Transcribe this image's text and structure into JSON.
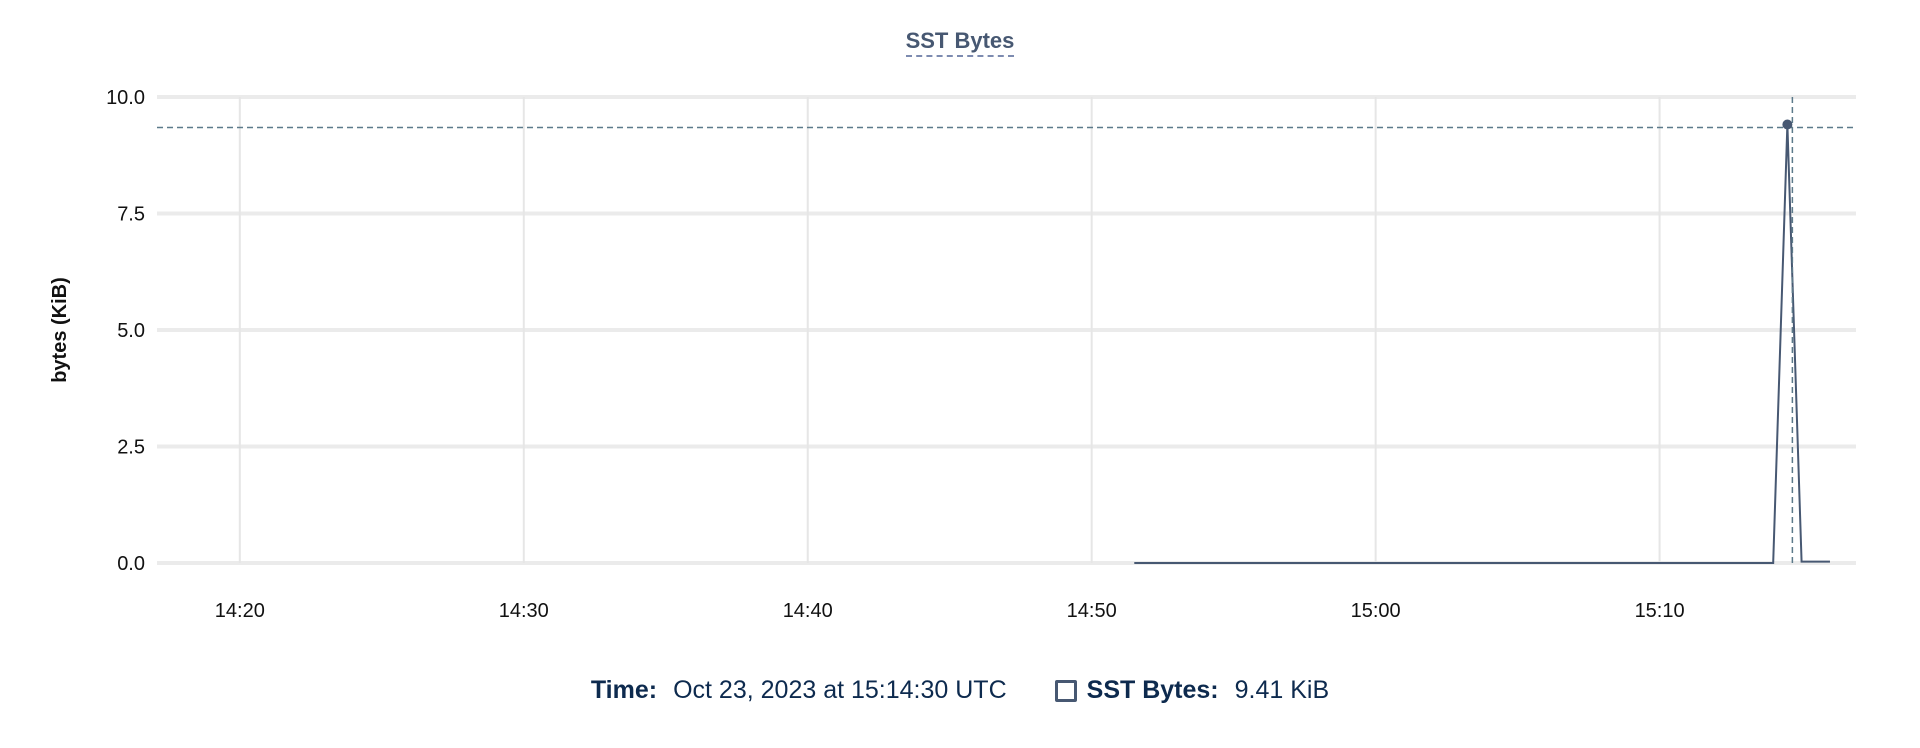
{
  "chart_data": {
    "type": "line",
    "title": "SST Bytes",
    "ylabel": "bytes (KiB)",
    "xlabel": "",
    "ylim": [
      0,
      10
    ],
    "xlim": [
      "14:17:05",
      "15:16:55"
    ],
    "y_ticks": [
      "0.0",
      "2.5",
      "5.0",
      "7.5",
      "10.0"
    ],
    "x_ticks": [
      "14:20",
      "14:30",
      "14:40",
      "14:50",
      "15:00",
      "15:10"
    ],
    "grid": true,
    "series": [
      {
        "name": "SST Bytes",
        "color": "#475872",
        "x": [
          "14:51:30",
          "15:14:00",
          "15:14:30",
          "15:15:00",
          "15:16:00"
        ],
        "y": [
          0,
          0,
          9.41,
          0.03,
          0.03
        ]
      }
    ],
    "hover": {
      "x": "15:14:30",
      "y": 9.41
    }
  },
  "legend": {
    "time_label": "Time:",
    "time_value": "Oct 23, 2023 at 15:14:30 UTC",
    "series_label": "SST Bytes:",
    "series_value": "9.41 KiB"
  }
}
